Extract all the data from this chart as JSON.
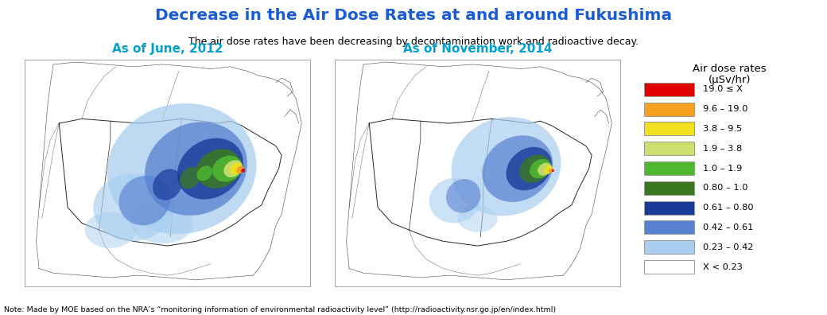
{
  "title": "Decrease in the Air Dose Rates at and around Fukushima",
  "subtitle": "The air dose rates have been decreasing by decontamination work and radioactive decay.",
  "title_color": "#1a5cd6",
  "subtitle_color": "#000000",
  "map1_label": "As of June, 2012",
  "map2_label": "As of November, 2014",
  "label_color": "#00a0d0",
  "note": "Note: Made by MOE based on the NRA’s “monitoring information of environmental radioactivity level” (http://radioactivity.nsr.go.jp/en/index.html)",
  "legend_title_line1": "Air dose rates",
  "legend_title_line2": "(μSv/hr)",
  "legend_items": [
    {
      "label": "19.0 ≤ X",
      "color": "#e00000"
    },
    {
      "label": "9.6 – 19.0",
      "color": "#f5a020"
    },
    {
      "label": "3.8 – 9.5",
      "color": "#f0e020"
    },
    {
      "label": "1.9 – 3.8",
      "color": "#cce070"
    },
    {
      "label": "1.0 – 1.9",
      "color": "#50b830"
    },
    {
      "label": "0.80 – 1.0",
      "color": "#3a7820"
    },
    {
      "label": "0.61 – 0.80",
      "color": "#1a3a98"
    },
    {
      "label": "0.42 – 0.61",
      "color": "#5880d0"
    },
    {
      "label": "0.23 – 0.42",
      "color": "#a8cef0"
    },
    {
      "label": "X < 0.23",
      "color": "#ffffff"
    }
  ],
  "bg_color": "#ffffff",
  "figsize": [
    10.4,
    3.96
  ],
  "dpi": 100
}
